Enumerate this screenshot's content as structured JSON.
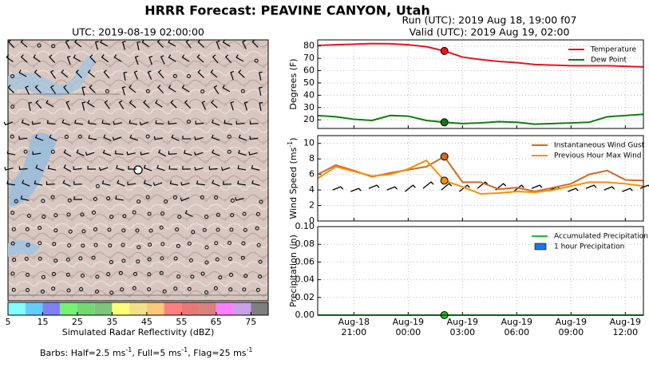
{
  "header": {
    "title": "HRRR Forecast: PEAVINE CANYON, Utah"
  },
  "map": {
    "title": "UTC: 2019-08-19 02:00:00",
    "note": [
      "Barbs: Half=2.5 ms",
      "-1",
      ", Full=5 ms",
      "-1",
      ", Flag=25 ms",
      "-1"
    ]
  },
  "chart_data": [
    {
      "type": "colorbar",
      "xlabel": "Simulated Radar Reflectivity (dBZ)",
      "bins": [
        5,
        10,
        15,
        20,
        25,
        30,
        35,
        40,
        45,
        50,
        55,
        60,
        65,
        70,
        75,
        80
      ],
      "colors": [
        "#7fffff",
        "#66ccff",
        "#8080ff",
        "#73f273",
        "#73d873",
        "#7dc47d",
        "#ffff77",
        "#f2e08a",
        "#ffc878",
        "#ff7f7f",
        "#e87878",
        "#d98080",
        "#ff7fff",
        "#c8a0e6",
        "#7f7f7f"
      ],
      "xlim": [
        5,
        80
      ],
      "xticks": [
        5,
        15,
        25,
        35,
        45,
        55,
        65,
        75
      ]
    },
    {
      "type": "line",
      "title": [
        "Run (UTC): 2019 Aug 18, 19:00 f07",
        "Valid (UTC): 2019 Aug 19, 02:00"
      ],
      "ylabel": [
        "Degrees (F)"
      ],
      "x": [
        "Aug-18 19:00",
        "Aug-18 20:00",
        "Aug-18 21:00",
        "Aug-18 22:00",
        "Aug-18 23:00",
        "Aug-19 00:00",
        "Aug-19 01:00",
        "Aug-19 02:00",
        "Aug-19 03:00",
        "Aug-19 04:00",
        "Aug-19 05:00",
        "Aug-19 06:00",
        "Aug-19 07:00",
        "Aug-19 08:00",
        "Aug-19 09:00",
        "Aug-19 10:00",
        "Aug-19 11:00",
        "Aug-19 12:00",
        "Aug-19 13:00"
      ],
      "xticks": [
        "Aug-18 21:00",
        "Aug-19 00:00",
        "Aug-19 03:00",
        "Aug-19 06:00",
        "Aug-19 09:00",
        "Aug-19 12:00"
      ],
      "highlight_x": "Aug-19 02:00",
      "ylim": [
        13,
        85
      ],
      "yticks": [
        20,
        30,
        40,
        50,
        60,
        70,
        80
      ],
      "grid": true,
      "legend": "upper right",
      "series": [
        {
          "name": "Temperature",
          "color": "#e8141c",
          "values": [
            80.5,
            81,
            81.5,
            82,
            81.8,
            81,
            79.5,
            76,
            71,
            69,
            67.5,
            66.5,
            65,
            64.5,
            64,
            64,
            64,
            63.5,
            63
          ]
        },
        {
          "name": "Dew Point",
          "color": "#0a7d0a",
          "values": [
            23.5,
            22.5,
            20.5,
            19.5,
            23.5,
            23,
            19.5,
            18,
            17,
            17.5,
            18.5,
            18,
            16.5,
            17,
            17.5,
            18,
            22.5,
            23.5,
            24.5
          ]
        }
      ]
    },
    {
      "type": "line",
      "ylabel": [
        "Wind Speed (ms",
        "-1",
        ")"
      ],
      "x": [
        "Aug-18 19:00",
        "Aug-18 20:00",
        "Aug-18 21:00",
        "Aug-18 22:00",
        "Aug-18 23:00",
        "Aug-19 00:00",
        "Aug-19 01:00",
        "Aug-19 02:00",
        "Aug-19 03:00",
        "Aug-19 04:00",
        "Aug-19 05:00",
        "Aug-19 06:00",
        "Aug-19 07:00",
        "Aug-19 08:00",
        "Aug-19 09:00",
        "Aug-19 10:00",
        "Aug-19 11:00",
        "Aug-19 12:00",
        "Aug-19 13:00"
      ],
      "xticks": [
        "Aug-18 21:00",
        "Aug-19 00:00",
        "Aug-19 03:00",
        "Aug-19 06:00",
        "Aug-19 09:00",
        "Aug-19 12:00"
      ],
      "highlight_x": "Aug-19 02:00",
      "ylim": [
        0,
        11
      ],
      "yticks": [
        0,
        2,
        4,
        6,
        8,
        10
      ],
      "grid": true,
      "legend": "upper right",
      "series": [
        {
          "name": "Instantaneous Wind Gust",
          "color": "#d2691e",
          "values": [
            6,
            7.2,
            6.5,
            5.7,
            6.2,
            6.6,
            7,
            8.3,
            5,
            5,
            4.1,
            4.3,
            3.8,
            4.3,
            4.8,
            6,
            6.5,
            5.3,
            5.2
          ]
        },
        {
          "name": "Previous Hour Max Wind",
          "color": "#ff8c00",
          "values": [
            5.5,
            7,
            6.4,
            5.8,
            6,
            6.7,
            7.8,
            5.2,
            4.4,
            3.5,
            3.6,
            3.8,
            3.7,
            4,
            4.5,
            5,
            5,
            4.8,
            4.5
          ]
        }
      ]
    },
    {
      "type": "line",
      "ylabel": [
        "Precipitation (in)"
      ],
      "x": [
        "Aug-18 19:00",
        "Aug-18 20:00",
        "Aug-18 21:00",
        "Aug-18 22:00",
        "Aug-18 23:00",
        "Aug-19 00:00",
        "Aug-19 01:00",
        "Aug-19 02:00",
        "Aug-19 03:00",
        "Aug-19 04:00",
        "Aug-19 05:00",
        "Aug-19 06:00",
        "Aug-19 07:00",
        "Aug-19 08:00",
        "Aug-19 09:00",
        "Aug-19 10:00",
        "Aug-19 11:00",
        "Aug-19 12:00",
        "Aug-19 13:00"
      ],
      "xticks": [
        {
          "value": "Aug-18 21:00",
          "label": [
            "Aug-18",
            "21:00"
          ]
        },
        {
          "value": "Aug-19 00:00",
          "label": [
            "Aug-19",
            "00:00"
          ]
        },
        {
          "value": "Aug-19 03:00",
          "label": [
            "Aug-19",
            "03:00"
          ]
        },
        {
          "value": "Aug-19 06:00",
          "label": [
            "Aug-19",
            "06:00"
          ]
        },
        {
          "value": "Aug-19 09:00",
          "label": [
            "Aug-19",
            "09:00"
          ]
        },
        {
          "value": "Aug-19 12:00",
          "label": [
            "Aug-19",
            "12:00"
          ]
        }
      ],
      "highlight_x": "Aug-19 02:00",
      "ylim": [
        0,
        0.1
      ],
      "yticks": [
        {
          "value": 0,
          "label": "0.00"
        },
        {
          "value": 0.02,
          "label": "0.02"
        },
        {
          "value": 0.04,
          "label": "0.04"
        },
        {
          "value": 0.06,
          "label": "0.06"
        },
        {
          "value": 0.08,
          "label": "0.08"
        },
        {
          "value": 0.1,
          "label": "0.10"
        }
      ],
      "grid": true,
      "legend": "upper right",
      "series": [
        {
          "name": "Accumulated Precipitation",
          "color": "#22bb22",
          "values": [
            0,
            0,
            0,
            0,
            0,
            0,
            0,
            0,
            0,
            0,
            0,
            0,
            0,
            0,
            0,
            0,
            0,
            0,
            0
          ]
        },
        {
          "name": "1 hour Precipitation",
          "color": "#1e78dc",
          "kind": "bar",
          "values": [
            0,
            0,
            0,
            0,
            0,
            0,
            0,
            0,
            0,
            0,
            0,
            0,
            0,
            0,
            0,
            0,
            0,
            0,
            0
          ]
        }
      ]
    }
  ]
}
